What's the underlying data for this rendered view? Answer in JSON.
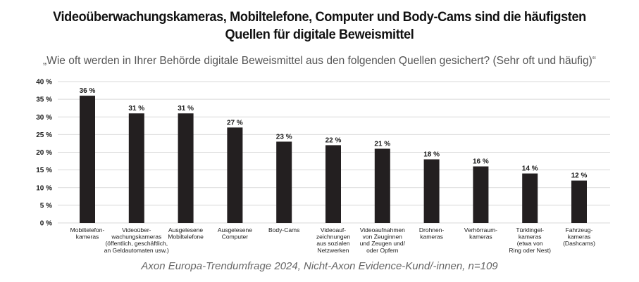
{
  "title_lines": [
    "Videoüberwachungskameras, Mobiltelefone, Computer und Body-Cams sind die häufigsten",
    "Quellen für digitale Beweismittel"
  ],
  "subtitle": "„Wie oft werden in Ihrer Behörde digitale Beweismittel aus den folgenden Quellen gesichert? (Sehr oft und häufig)“",
  "footer": "Axon Europa-Trendumfrage 2024, Nicht-Axon Evidence-Kund/-innen, n=109",
  "colors": {
    "bar": "#231f20",
    "grid": "#d9d9d9",
    "text": "#1a1a1a"
  },
  "chart_data": {
    "type": "bar",
    "title": "Videoüberwachungskameras, Mobiltelefone, Computer und Body-Cams sind die häufigsten Quellen für digitale Beweismittel",
    "subtitle": "„Wie oft werden in Ihrer Behörde digitale Beweismittel aus den folgenden Quellen gesichert? (Sehr oft und häufig)“",
    "categories": [
      [
        "Mobiltelefon-",
        "kameras"
      ],
      [
        "Videoüber-",
        "wachungskameras",
        "(öffentlich, geschäftlich,",
        "an Geldautomaten usw.)"
      ],
      [
        "Ausgelesene",
        "Mobiltelefone"
      ],
      [
        "Ausgelesene",
        "Computer"
      ],
      [
        "Body-Cams"
      ],
      [
        "Videoauf-",
        "zeichnungen",
        "aus sozialen",
        "Netzwerken"
      ],
      [
        "Videoaufnahmen",
        "von Zeuginnen",
        "und Zeugen und/",
        "oder Opfern"
      ],
      [
        "Drohnen-",
        "kameras"
      ],
      [
        "Verhörraum-",
        "kameras"
      ],
      [
        "Türklingel-",
        "kameras",
        "(etwa von",
        "Ring oder Nest)"
      ],
      [
        "Fahrzeug-",
        "kameras",
        "(Dashcams)"
      ]
    ],
    "values": [
      36,
      31,
      31,
      27,
      23,
      22,
      21,
      18,
      16,
      14,
      12
    ],
    "value_labels": [
      "36 %",
      "31 %",
      "31 %",
      "27 %",
      "23 %",
      "22 %",
      "21 %",
      "18 %",
      "16 %",
      "14 %",
      "12 %"
    ],
    "ylim": [
      0,
      40
    ],
    "yticks": [
      0,
      5,
      10,
      15,
      20,
      25,
      30,
      35,
      40
    ],
    "ytick_labels": [
      "0 %",
      "5 %",
      "10 %",
      "15 %",
      "20 %",
      "25 %",
      "30 %",
      "35 %",
      "40 %"
    ],
    "grid": true,
    "xlabel": "",
    "ylabel": ""
  }
}
